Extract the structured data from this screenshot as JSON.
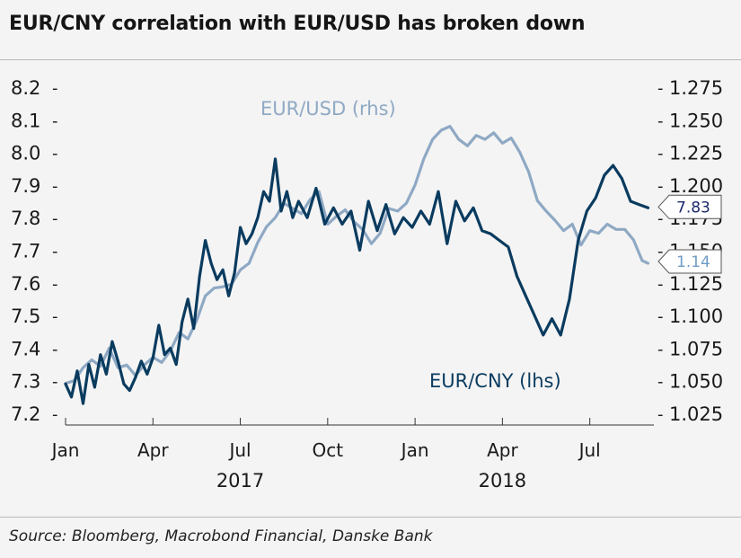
{
  "title": "EUR/CNY correlation with EUR/USD has broken down",
  "source": "Source: Bloomberg, Macrobond Financial, Danske Bank",
  "chart_data": {
    "type": "line",
    "title": "EUR/CNY correlation with EUR/USD has broken down",
    "xlabel": "",
    "ylabel_left": "",
    "ylabel_right": "",
    "x_ticks": [
      "Jan",
      "Apr",
      "Jul",
      "Oct",
      "Jan",
      "Apr",
      "Jul"
    ],
    "x_tick_months": [
      0,
      3,
      6,
      9,
      12,
      15,
      18
    ],
    "year_labels": [
      {
        "label": "2017",
        "month": 6
      },
      {
        "label": "2018",
        "month": 15
      }
    ],
    "x_range_months": [
      0,
      20.2
    ],
    "y_left": {
      "range": [
        7.2,
        8.2
      ],
      "ticks": [
        "7.2",
        "7.3",
        "7.4",
        "7.5",
        "7.6",
        "7.7",
        "7.8",
        "7.9",
        "8.0",
        "8.1",
        "8.2"
      ]
    },
    "y_right": {
      "range": [
        1.025,
        1.275
      ],
      "ticks": [
        "1.025",
        "1.050",
        "1.075",
        "1.100",
        "1.125",
        "1.150",
        "1.175",
        "1.200",
        "1.225",
        "1.250",
        "1.275"
      ]
    },
    "series": [
      {
        "name": "EUR/USD (rhs)",
        "axis": "right",
        "color": "#8fa9c4",
        "last_value_label": "1.14",
        "x_months": [
          0.0,
          0.3,
          0.6,
          0.9,
          1.2,
          1.5,
          1.8,
          2.1,
          2.4,
          2.7,
          3.0,
          3.3,
          3.6,
          3.9,
          4.2,
          4.5,
          4.8,
          5.1,
          5.4,
          5.7,
          6.0,
          6.3,
          6.6,
          6.9,
          7.2,
          7.5,
          7.8,
          8.1,
          8.4,
          8.7,
          9.0,
          9.3,
          9.6,
          9.9,
          10.2,
          10.5,
          10.8,
          11.1,
          11.4,
          11.7,
          12.0,
          12.3,
          12.6,
          12.9,
          13.2,
          13.5,
          13.8,
          14.1,
          14.4,
          14.7,
          15.0,
          15.3,
          15.6,
          15.9,
          16.2,
          16.5,
          16.8,
          17.1,
          17.4,
          17.7,
          18.0,
          18.3,
          18.6,
          18.9,
          19.2,
          19.5,
          19.8,
          20.0
        ],
        "values": [
          1.048,
          1.05,
          1.06,
          1.066,
          1.061,
          1.075,
          1.06,
          1.062,
          1.054,
          1.062,
          1.068,
          1.064,
          1.073,
          1.087,
          1.082,
          1.096,
          1.115,
          1.121,
          1.122,
          1.124,
          1.135,
          1.14,
          1.156,
          1.168,
          1.175,
          1.186,
          1.182,
          1.178,
          1.189,
          1.195,
          1.17,
          1.176,
          1.181,
          1.172,
          1.166,
          1.155,
          1.163,
          1.182,
          1.18,
          1.186,
          1.2,
          1.22,
          1.235,
          1.242,
          1.245,
          1.235,
          1.23,
          1.238,
          1.235,
          1.24,
          1.232,
          1.236,
          1.225,
          1.21,
          1.188,
          1.18,
          1.173,
          1.165,
          1.17,
          1.154,
          1.165,
          1.163,
          1.17,
          1.166,
          1.166,
          1.158,
          1.142,
          1.14
        ]
      },
      {
        "name": "EUR/CNY (lhs)",
        "axis": "left",
        "color": "#0a3b5f",
        "last_value_label": "7.83",
        "x_months": [
          0.0,
          0.2,
          0.4,
          0.6,
          0.8,
          1.0,
          1.2,
          1.4,
          1.6,
          1.8,
          2.0,
          2.2,
          2.4,
          2.6,
          2.8,
          3.0,
          3.2,
          3.4,
          3.6,
          3.8,
          4.0,
          4.2,
          4.4,
          4.6,
          4.8,
          5.0,
          5.2,
          5.4,
          5.6,
          5.8,
          6.0,
          6.2,
          6.4,
          6.6,
          6.8,
          7.0,
          7.2,
          7.4,
          7.6,
          7.8,
          8.0,
          8.3,
          8.6,
          8.9,
          9.2,
          9.5,
          9.8,
          10.1,
          10.4,
          10.7,
          11.0,
          11.3,
          11.6,
          11.9,
          12.2,
          12.5,
          12.8,
          13.1,
          13.4,
          13.7,
          14.0,
          14.3,
          14.6,
          14.9,
          15.2,
          15.5,
          15.8,
          16.1,
          16.4,
          16.7,
          17.0,
          17.3,
          17.6,
          17.9,
          18.2,
          18.5,
          18.8,
          19.1,
          19.4,
          19.7,
          20.0
        ],
        "values": [
          7.29,
          7.25,
          7.33,
          7.23,
          7.35,
          7.28,
          7.38,
          7.32,
          7.42,
          7.36,
          7.29,
          7.27,
          7.31,
          7.36,
          7.32,
          7.37,
          7.47,
          7.38,
          7.4,
          7.35,
          7.48,
          7.55,
          7.46,
          7.62,
          7.73,
          7.66,
          7.61,
          7.64,
          7.56,
          7.63,
          7.77,
          7.72,
          7.75,
          7.8,
          7.88,
          7.85,
          7.98,
          7.82,
          7.88,
          7.8,
          7.85,
          7.8,
          7.89,
          7.78,
          7.83,
          7.78,
          7.82,
          7.7,
          7.85,
          7.76,
          7.84,
          7.75,
          7.8,
          7.77,
          7.82,
          7.78,
          7.88,
          7.72,
          7.85,
          7.79,
          7.83,
          7.76,
          7.75,
          7.73,
          7.71,
          7.62,
          7.56,
          7.5,
          7.44,
          7.49,
          7.44,
          7.55,
          7.73,
          7.82,
          7.86,
          7.93,
          7.96,
          7.92,
          7.85,
          7.84,
          7.83
        ]
      }
    ],
    "annotations": [
      {
        "text": "EUR/USD (rhs)",
        "series": "EUR/USD (rhs)"
      },
      {
        "text": "EUR/CNY (lhs)",
        "series": "EUR/CNY (lhs)"
      }
    ]
  }
}
